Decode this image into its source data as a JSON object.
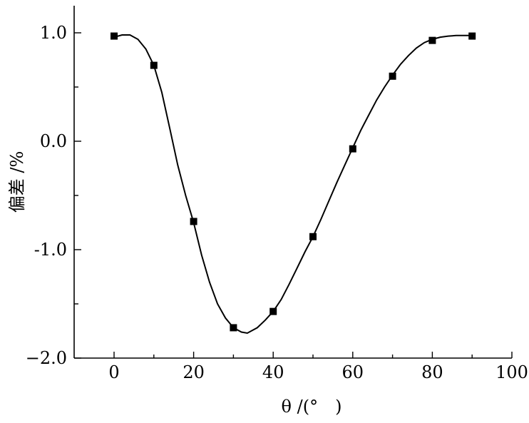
{
  "chart_data": {
    "type": "scatter",
    "xlabel": "θ /(°　)",
    "ylabel": "偏差 /%",
    "xlim": [
      -10,
      100
    ],
    "ylim": [
      -2.0,
      1.2
    ],
    "x_ticks": [
      0,
      20,
      40,
      60,
      80,
      100
    ],
    "x_tick_labels": [
      "0",
      "20",
      "40",
      "60",
      "80",
      "100"
    ],
    "y_ticks": [
      1.0,
      0.0,
      -1.0,
      -2.0
    ],
    "y_tick_labels": [
      "1.0",
      "0.0",
      "-1.0",
      "−2.0"
    ],
    "y_minor_step": 0.5,
    "grid": false,
    "marker": "square",
    "color": "#000000",
    "series": [
      {
        "points": [
          {
            "x": 0,
            "y": 0.97
          },
          {
            "x": 10,
            "y": 0.7
          },
          {
            "x": 20,
            "y": -0.74
          },
          {
            "x": 30,
            "y": -1.72
          },
          {
            "x": 40,
            "y": -1.57
          },
          {
            "x": 50,
            "y": -0.88
          },
          {
            "x": 60,
            "y": -0.07
          },
          {
            "x": 70,
            "y": 0.6
          },
          {
            "x": 80,
            "y": 0.93
          },
          {
            "x": 90,
            "y": 0.97
          }
        ]
      }
    ],
    "fit_curve": [
      {
        "x": 0,
        "y": 0.96
      },
      {
        "x": 2,
        "y": 0.98
      },
      {
        "x": 4,
        "y": 0.98
      },
      {
        "x": 6,
        "y": 0.94
      },
      {
        "x": 8,
        "y": 0.85
      },
      {
        "x": 10,
        "y": 0.7
      },
      {
        "x": 12,
        "y": 0.45
      },
      {
        "x": 14,
        "y": 0.12
      },
      {
        "x": 16,
        "y": -0.22
      },
      {
        "x": 18,
        "y": -0.5
      },
      {
        "x": 20,
        "y": -0.75
      },
      {
        "x": 22,
        "y": -1.05
      },
      {
        "x": 24,
        "y": -1.3
      },
      {
        "x": 26,
        "y": -1.5
      },
      {
        "x": 28,
        "y": -1.63
      },
      {
        "x": 30,
        "y": -1.72
      },
      {
        "x": 32,
        "y": -1.76
      },
      {
        "x": 33.5,
        "y": -1.77
      },
      {
        "x": 36,
        "y": -1.72
      },
      {
        "x": 38,
        "y": -1.65
      },
      {
        "x": 40,
        "y": -1.57
      },
      {
        "x": 42,
        "y": -1.46
      },
      {
        "x": 44,
        "y": -1.32
      },
      {
        "x": 46,
        "y": -1.17
      },
      {
        "x": 48,
        "y": -1.02
      },
      {
        "x": 50,
        "y": -0.88
      },
      {
        "x": 52,
        "y": -0.72
      },
      {
        "x": 54,
        "y": -0.55
      },
      {
        "x": 56,
        "y": -0.38
      },
      {
        "x": 58,
        "y": -0.22
      },
      {
        "x": 60,
        "y": -0.06
      },
      {
        "x": 62,
        "y": 0.1
      },
      {
        "x": 64,
        "y": 0.24
      },
      {
        "x": 66,
        "y": 0.38
      },
      {
        "x": 68,
        "y": 0.5
      },
      {
        "x": 70,
        "y": 0.61
      },
      {
        "x": 72,
        "y": 0.71
      },
      {
        "x": 74,
        "y": 0.79
      },
      {
        "x": 76,
        "y": 0.86
      },
      {
        "x": 78,
        "y": 0.91
      },
      {
        "x": 80,
        "y": 0.94
      },
      {
        "x": 82,
        "y": 0.96
      },
      {
        "x": 84,
        "y": 0.97
      },
      {
        "x": 86,
        "y": 0.975
      },
      {
        "x": 88,
        "y": 0.975
      },
      {
        "x": 90,
        "y": 0.975
      }
    ]
  }
}
